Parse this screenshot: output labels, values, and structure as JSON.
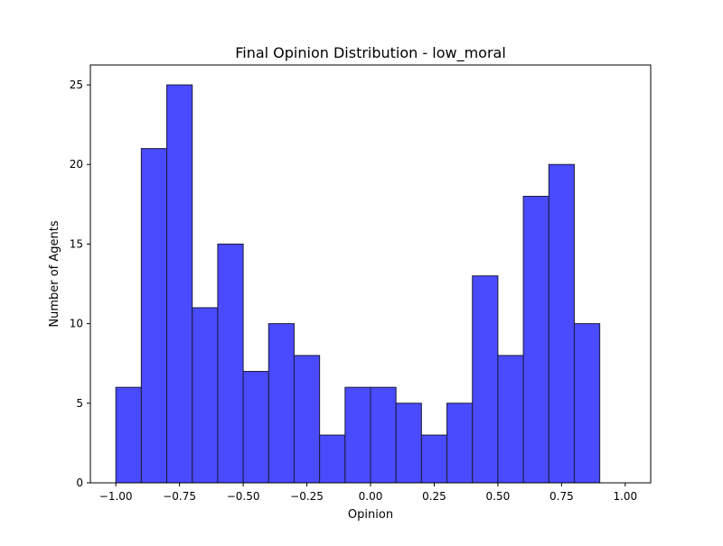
{
  "chart_data": {
    "type": "bar",
    "title": "Final Opinion Distribution - low_moral",
    "xlabel": "Opinion",
    "ylabel": "Number of Agents",
    "xlim": [
      -1.1,
      1.1
    ],
    "ylim": [
      0,
      26.25
    ],
    "bin_edges": [
      -1.0,
      -0.9,
      -0.8,
      -0.7,
      -0.6,
      -0.5,
      -0.4,
      -0.3,
      -0.2,
      -0.1,
      0.0,
      0.1,
      0.2,
      0.3,
      0.4,
      0.5,
      0.6,
      0.7,
      0.8,
      0.9
    ],
    "values": [
      6,
      21,
      25,
      11,
      15,
      7,
      10,
      8,
      3,
      6,
      6,
      5,
      3,
      5,
      13,
      8,
      18,
      20,
      10
    ],
    "x_ticks": [
      -1.0,
      -0.75,
      -0.5,
      -0.25,
      0.0,
      0.25,
      0.5,
      0.75,
      1.0
    ],
    "x_tick_labels": [
      "−1.00",
      "−0.75",
      "−0.50",
      "−0.25",
      "0.00",
      "0.25",
      "0.50",
      "0.75",
      "1.00"
    ],
    "y_ticks": [
      0,
      5,
      10,
      15,
      20,
      25
    ],
    "y_tick_labels": [
      "0",
      "5",
      "10",
      "15",
      "20",
      "25"
    ],
    "bar_color": "#4a4aff",
    "bar_edge_color": "#1c1c3a",
    "grid": false
  }
}
